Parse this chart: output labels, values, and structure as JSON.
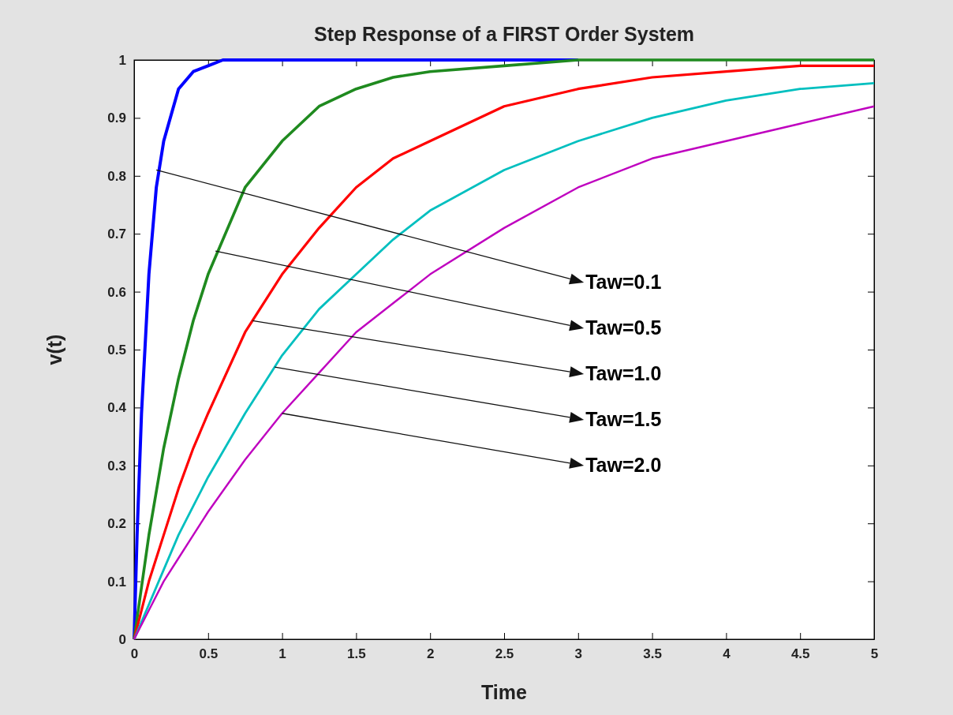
{
  "chart_data": {
    "type": "line",
    "title": "Step Response of a FIRST Order System",
    "xlabel": "Time",
    "ylabel": "v(t)",
    "xlim": [
      0,
      5
    ],
    "ylim": [
      0,
      1
    ],
    "xticks": [
      0,
      0.5,
      1,
      1.5,
      2,
      2.5,
      3,
      3.5,
      4,
      4.5,
      5
    ],
    "yticks": [
      0,
      0.1,
      0.2,
      0.3,
      0.4,
      0.5,
      0.6,
      0.7,
      0.8,
      0.9,
      1
    ],
    "grid": false,
    "marker": "none",
    "line_style": "solid",
    "x": [
      0,
      0.1,
      0.2,
      0.3,
      0.4,
      0.5,
      0.75,
      1,
      1.25,
      1.5,
      1.75,
      2,
      2.5,
      3,
      3.5,
      4,
      4.5,
      5
    ],
    "series": [
      {
        "color": "#0000ff",
        "x": [
          0,
          0.02,
          0.05,
          0.1,
          0.15,
          0.2,
          0.3,
          0.4,
          0.5,
          0.6,
          1,
          2,
          3
        ],
        "values": [
          0,
          0.18,
          0.39,
          0.63,
          0.78,
          0.86,
          0.95,
          0.98,
          0.99,
          1,
          1,
          1,
          1
        ]
      },
      {
        "color": "#1f8a1f",
        "values": [
          0,
          0.18,
          0.33,
          0.45,
          0.55,
          0.63,
          0.78,
          0.86,
          0.92,
          0.95,
          0.97,
          0.98,
          0.99,
          1,
          1,
          1,
          1,
          1
        ]
      },
      {
        "color": "#ff0000",
        "values": [
          0,
          0.1,
          0.18,
          0.26,
          0.33,
          0.39,
          0.53,
          0.63,
          0.71,
          0.78,
          0.83,
          0.86,
          0.92,
          0.95,
          0.97,
          0.98,
          0.99,
          0.99
        ]
      },
      {
        "color": "#00bfbf",
        "values": [
          0,
          0.06,
          0.12,
          0.18,
          0.23,
          0.28,
          0.39,
          0.49,
          0.57,
          0.63,
          0.69,
          0.74,
          0.81,
          0.86,
          0.9,
          0.93,
          0.95,
          0.96
        ]
      },
      {
        "color": "#bf00bf",
        "values": [
          0,
          0.05,
          0.1,
          0.14,
          0.18,
          0.22,
          0.31,
          0.39,
          0.46,
          0.53,
          0.58,
          0.63,
          0.71,
          0.78,
          0.83,
          0.86,
          0.89,
          0.92
        ]
      }
    ],
    "annotations": [
      {
        "text": "Taw=0.1",
        "x": 0.15,
        "y": 0.81
      },
      {
        "text": "Taw=0.5",
        "x": 0.55,
        "y": 0.67
      },
      {
        "text": "Taw=1.0",
        "x": 0.8,
        "y": 0.55
      },
      {
        "text": "Taw=1.5",
        "x": 0.95,
        "y": 0.47
      },
      {
        "text": "Taw=2.0",
        "x": 1,
        "y": 0.39
      }
    ]
  }
}
